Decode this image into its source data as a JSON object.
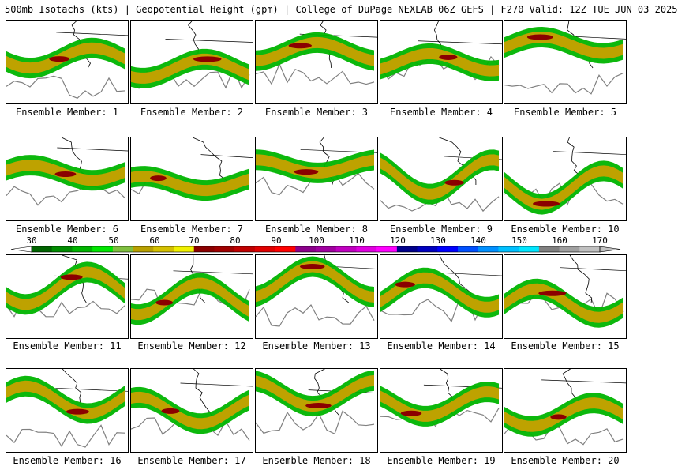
{
  "header": {
    "title": "500mb Isotachs (kts) | Geopotential Height (gpm) | College of DuPage NEXLAB   06Z GEFS | F270 Valid: 12Z TUE JUN 03 2025"
  },
  "colorbar": {
    "labels": [
      "30",
      "40",
      "50",
      "60",
      "70",
      "80",
      "90",
      "100",
      "110",
      "120",
      "130",
      "140",
      "150",
      "160",
      "170"
    ],
    "colors": [
      "#006400",
      "#008c00",
      "#00b400",
      "#00e600",
      "#7fbf3f",
      "#b8a000",
      "#d4c000",
      "#f0f000",
      "#8b0000",
      "#a00000",
      "#c00000",
      "#e00000",
      "#ff0000",
      "#8b008b",
      "#a000a0",
      "#c000c0",
      "#e000e0",
      "#ff00ff",
      "#00008b",
      "#0000c0",
      "#0000ff",
      "#0050ff",
      "#0090ff",
      "#00c0ff",
      "#00e6ff",
      "#808080",
      "#a0a0a0",
      "#c0c0c0"
    ]
  },
  "colors": {
    "fill_low": "#00b400",
    "fill_mid": "#c8a000",
    "fill_high": "#8b0000",
    "contour": "#808080",
    "coast": "#000000"
  },
  "members": [
    {
      "label": "Ensemble Member: 1"
    },
    {
      "label": "Ensemble Member: 2"
    },
    {
      "label": "Ensemble Member: 3"
    },
    {
      "label": "Ensemble Member: 4"
    },
    {
      "label": "Ensemble Member: 5"
    },
    {
      "label": "Ensemble Member: 6"
    },
    {
      "label": "Ensemble Member: 7"
    },
    {
      "label": "Ensemble Member: 8"
    },
    {
      "label": "Ensemble Member: 9"
    },
    {
      "label": "Ensemble Member: 10"
    },
    {
      "label": "Ensemble Member: 11"
    },
    {
      "label": "Ensemble Member: 12"
    },
    {
      "label": "Ensemble Member: 13"
    },
    {
      "label": "Ensemble Member: 14"
    },
    {
      "label": "Ensemble Member: 15"
    },
    {
      "label": "Ensemble Member: 16"
    },
    {
      "label": "Ensemble Member: 17"
    },
    {
      "label": "Ensemble Member: 18"
    },
    {
      "label": "Ensemble Member: 19"
    },
    {
      "label": "Ensemble Member: 20"
    }
  ]
}
